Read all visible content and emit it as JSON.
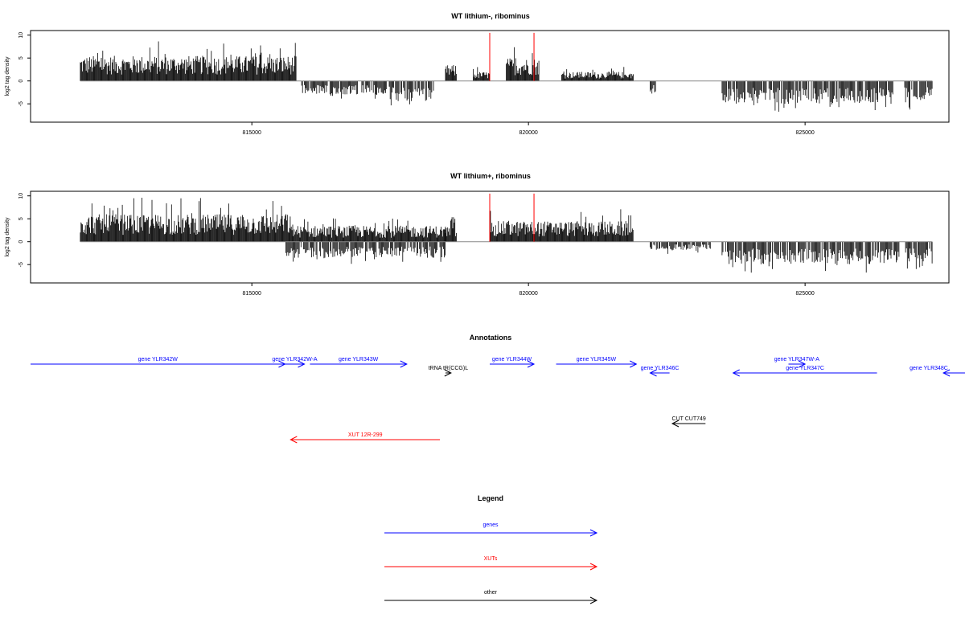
{
  "chart_data": [
    {
      "type": "bar",
      "title": "WT lithium-, ribominus",
      "xlabel": "",
      "ylabel": "log2 tag density",
      "xlim": [
        811000,
        827600
      ],
      "ylim": [
        -9,
        11
      ],
      "yticks": [
        10,
        5,
        0,
        -5
      ],
      "xticks": [
        815000,
        820000,
        825000
      ],
      "xtick_labels": [
        "815000",
        "820000",
        "825000"
      ],
      "positive_segments": [
        {
          "start": 811900,
          "end": 815800,
          "max": 5.5
        },
        {
          "start": 818500,
          "end": 818700,
          "max": 3.5
        },
        {
          "start": 819000,
          "end": 819300,
          "max": 2
        },
        {
          "start": 819600,
          "end": 820200,
          "max": 5
        },
        {
          "start": 820600,
          "end": 821900,
          "max": 2
        }
      ],
      "negative_segments": [
        {
          "start": 815900,
          "end": 817500,
          "min": -3
        },
        {
          "start": 817500,
          "end": 818300,
          "min": -4.5
        },
        {
          "start": 822200,
          "end": 822300,
          "min": -3
        },
        {
          "start": 823500,
          "end": 826600,
          "min": -5
        },
        {
          "start": 826800,
          "end": 827300,
          "min": -4.5
        }
      ],
      "highlights": [
        {
          "x": 819300,
          "value": 10.5,
          "color": "#ff0000"
        },
        {
          "x": 820100,
          "value": 10.5,
          "color": "#ff0000"
        }
      ],
      "bar_color": "#000000"
    },
    {
      "type": "bar",
      "title": "WT lithium+, ribominus",
      "xlabel": "",
      "ylabel": "log2 tag density",
      "xlim": [
        811000,
        827600
      ],
      "ylim": [
        -9,
        11
      ],
      "yticks": [
        10,
        5,
        0,
        -5
      ],
      "xticks": [
        815000,
        820000,
        825000
      ],
      "xtick_labels": [
        "815000",
        "820000",
        "825000"
      ],
      "positive_segments": [
        {
          "start": 811900,
          "end": 815700,
          "max": 6
        },
        {
          "start": 815700,
          "end": 818500,
          "max": 3.5
        },
        {
          "start": 818500,
          "end": 818700,
          "max": 3.5
        },
        {
          "start": 819300,
          "end": 821900,
          "max": 4.5
        }
      ],
      "negative_segments": [
        {
          "start": 815600,
          "end": 818500,
          "min": -3.5
        },
        {
          "start": 822200,
          "end": 823300,
          "min": -2
        },
        {
          "start": 823500,
          "end": 826700,
          "min": -5
        },
        {
          "start": 826800,
          "end": 827300,
          "min": -4.5
        }
      ],
      "highlights": [
        {
          "x": 819300,
          "value": 10.5,
          "color": "#ff0000"
        },
        {
          "x": 820100,
          "value": 10.5,
          "color": "#ff0000"
        }
      ],
      "bar_color": "#000000"
    }
  ],
  "annotations": {
    "title": "Annotations",
    "features": [
      {
        "label": "gene YLR342W",
        "start": 811000,
        "end": 815600,
        "strand": "+",
        "color": "#0000ff",
        "row": 0
      },
      {
        "label": "gene YLR342W-A",
        "start": 815600,
        "end": 815950,
        "strand": "+",
        "color": "#0000ff",
        "row": 0
      },
      {
        "label": "gene YLR343W",
        "start": 816050,
        "end": 817800,
        "strand": "+",
        "color": "#0000ff",
        "row": 0
      },
      {
        "label": "tRNA tR(CCG)L",
        "start": 818500,
        "end": 818600,
        "strand": "+",
        "color": "#000000",
        "row": 1
      },
      {
        "label": "gene YLR344W",
        "start": 819300,
        "end": 820100,
        "strand": "+",
        "color": "#0000ff",
        "row": 0
      },
      {
        "label": "gene YLR345W",
        "start": 820500,
        "end": 821950,
        "strand": "+",
        "color": "#0000ff",
        "row": 0
      },
      {
        "label": "gene YLR346C",
        "start": 822200,
        "end": 822550,
        "strand": "-",
        "color": "#0000ff",
        "row": 1
      },
      {
        "label": "gene YLR347W-A",
        "start": 824700,
        "end": 825000,
        "strand": "+",
        "color": "#0000ff",
        "row": 0
      },
      {
        "label": "gene YLR347C",
        "start": 823700,
        "end": 826300,
        "strand": "-",
        "color": "#0000ff",
        "row": 1
      },
      {
        "label": "gene YLR348C",
        "start": 827500,
        "end": 828000,
        "strand": "-",
        "color": "#0000ff",
        "row": 1
      },
      {
        "label": "CUT CUT749",
        "start": 822600,
        "end": 823200,
        "strand": "-",
        "color": "#000000",
        "row": 3
      },
      {
        "label": "XUT 12R-299",
        "start": 815700,
        "end": 818400,
        "strand": "-",
        "color": "#ff0000",
        "row": 4
      }
    ]
  },
  "legend": {
    "title": "Legend",
    "items": [
      {
        "label": "genes",
        "color": "#0000ff"
      },
      {
        "label": "XUTs",
        "color": "#ff0000"
      },
      {
        "label": "other",
        "color": "#000000"
      }
    ]
  }
}
